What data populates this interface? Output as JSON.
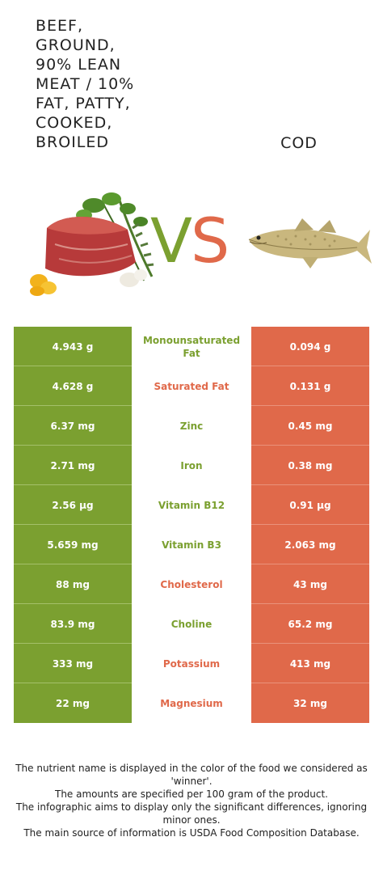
{
  "food_left": {
    "name": "BEEF, GROUND, 90% LEAN MEAT / 10% FAT, PATTY, COOKED, BROILED",
    "color": "#7ba030"
  },
  "food_right": {
    "name": "COD",
    "color": "#e0694a"
  },
  "vs": {
    "v": "V",
    "s": "S"
  },
  "rows": [
    {
      "left": "4.943 g",
      "nutrient": "Monounsaturated Fat",
      "right": "0.094 g",
      "winner": "left"
    },
    {
      "left": "4.628 g",
      "nutrient": "Saturated Fat",
      "right": "0.131 g",
      "winner": "right"
    },
    {
      "left": "6.37 mg",
      "nutrient": "Zinc",
      "right": "0.45 mg",
      "winner": "left"
    },
    {
      "left": "2.71 mg",
      "nutrient": "Iron",
      "right": "0.38 mg",
      "winner": "left"
    },
    {
      "left": "2.56 µg",
      "nutrient": "Vitamin B12",
      "right": "0.91 µg",
      "winner": "left"
    },
    {
      "left": "5.659 mg",
      "nutrient": "Vitamin B3",
      "right": "2.063 mg",
      "winner": "left"
    },
    {
      "left": "88 mg",
      "nutrient": "Cholesterol",
      "right": "43 mg",
      "winner": "right"
    },
    {
      "left": "83.9 mg",
      "nutrient": "Choline",
      "right": "65.2 mg",
      "winner": "left"
    },
    {
      "left": "333 mg",
      "nutrient": "Potassium",
      "right": "413 mg",
      "winner": "right"
    },
    {
      "left": "22 mg",
      "nutrient": "Magnesium",
      "right": "32 mg",
      "winner": "right"
    }
  ],
  "footer": {
    "line1": "The nutrient name is displayed in the color of the food we considered as 'winner'.",
    "line2": "The amounts are specified per 100 gram of the product.",
    "line3": "The infographic aims to display only the significant differences, ignoring minor ones.",
    "line4": "The main source of information is USDA Food Composition Database."
  }
}
